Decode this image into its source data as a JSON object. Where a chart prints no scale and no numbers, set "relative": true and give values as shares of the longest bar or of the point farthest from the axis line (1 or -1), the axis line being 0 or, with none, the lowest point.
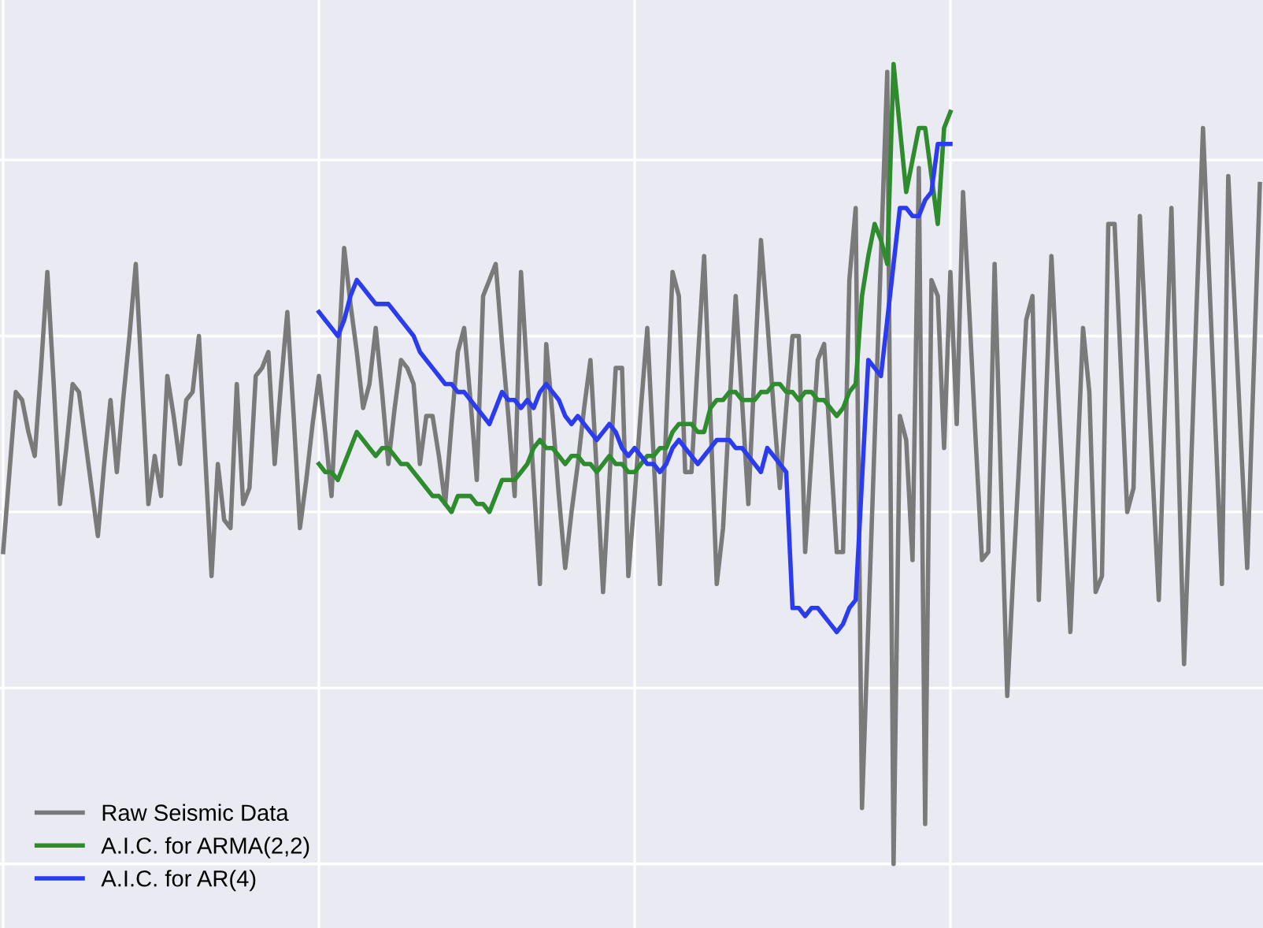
{
  "chart_data": {
    "type": "line",
    "relative": true,
    "grid": true,
    "legend": "bottom left",
    "marker": "none",
    "line_style": "solid",
    "categories": [
      null,
      null,
      null,
      null,
      null,
      null,
      null,
      null,
      null,
      null,
      null,
      null,
      null,
      null,
      null,
      null,
      null,
      null,
      null,
      null,
      null,
      null,
      null,
      null,
      null,
      null,
      null,
      null,
      null,
      null,
      null,
      null,
      null,
      null,
      null,
      null,
      null,
      null,
      null,
      null,
      null,
      null,
      null,
      null,
      null,
      null,
      null,
      null,
      null,
      null,
      null,
      null,
      null,
      null,
      null,
      null,
      null,
      null,
      null,
      null,
      null,
      null,
      null,
      null,
      null,
      null,
      null,
      null,
      null,
      null,
      null,
      null,
      null,
      null,
      null,
      null,
      null,
      null,
      null,
      null,
      null,
      null,
      null,
      null,
      null,
      null,
      null,
      null,
      null,
      null,
      null,
      null,
      null,
      null,
      null,
      null,
      null,
      null,
      null,
      null,
      null,
      null,
      null,
      null,
      null,
      null,
      null,
      null,
      null,
      null,
      null,
      null,
      null,
      null,
      null,
      null,
      null,
      null,
      null,
      null,
      null,
      null,
      null,
      null,
      null,
      null,
      null,
      null,
      null,
      null,
      null,
      null,
      null,
      null,
      null,
      null,
      null,
      null,
      null,
      null,
      null,
      null,
      null,
      null,
      null,
      null,
      null,
      null,
      null,
      null,
      null,
      null,
      null,
      null,
      null,
      null,
      null,
      null,
      null,
      null,
      null,
      null,
      null,
      null,
      null,
      null,
      null,
      null,
      null,
      null,
      null,
      null,
      null,
      null,
      null,
      null,
      null,
      null,
      null,
      null,
      null,
      null,
      null,
      null,
      null,
      null,
      null,
      null,
      null,
      null,
      null,
      null,
      null,
      null,
      null,
      null,
      null,
      null,
      null,
      null
    ],
    "series": [
      {
        "name": "Raw Seismic Data",
        "color": "#7a7a7a",
        "values": [
          0.39,
          0.49,
          0.59,
          0.58,
          0.54,
          0.51,
          0.62,
          0.74,
          0.6,
          0.45,
          0.52,
          0.6,
          0.59,
          0.53,
          0.47,
          0.41,
          0.5,
          0.58,
          0.49,
          0.58,
          0.66,
          0.75,
          0.6,
          0.45,
          0.51,
          0.46,
          0.61,
          0.56,
          0.5,
          0.58,
          0.59,
          0.66,
          0.51,
          0.36,
          0.5,
          0.43,
          0.42,
          0.6,
          0.45,
          0.47,
          0.61,
          0.62,
          0.64,
          0.5,
          0.6,
          0.69,
          0.56,
          0.42,
          0.48,
          0.55,
          0.61,
          0.54,
          0.46,
          0.62,
          0.77,
          0.7,
          0.64,
          0.57,
          0.6,
          0.67,
          0.59,
          0.5,
          0.57,
          0.63,
          0.62,
          0.6,
          0.5,
          0.56,
          0.56,
          0.51,
          0.45,
          0.55,
          0.64,
          0.67,
          0.58,
          0.48,
          0.71,
          0.73,
          0.75,
          0.65,
          0.56,
          0.46,
          0.74,
          0.61,
          0.48,
          0.35,
          0.65,
          0.56,
          0.46,
          0.37,
          0.44,
          0.5,
          0.57,
          0.63,
          0.49,
          0.34,
          0.48,
          0.62,
          0.62,
          0.36,
          0.46,
          0.57,
          0.67,
          0.51,
          0.35,
          0.55,
          0.74,
          0.71,
          0.49,
          0.49,
          0.63,
          0.76,
          0.56,
          0.35,
          0.42,
          0.57,
          0.71,
          0.58,
          0.45,
          0.62,
          0.78,
          0.68,
          0.57,
          0.47,
          0.57,
          0.66,
          0.66,
          0.39,
          0.51,
          0.63,
          0.65,
          0.52,
          0.39,
          0.39,
          0.73,
          0.82,
          0.07,
          0.3,
          0.53,
          0.76,
          0.99,
          0,
          0.56,
          0.53,
          0.38,
          0.87,
          0.05,
          0.73,
          0.71,
          0.52,
          0.74,
          0.55,
          0.84,
          0.69,
          0.53,
          0.38,
          0.39,
          0.75,
          0.48,
          0.21,
          0.37,
          0.52,
          0.68,
          0.71,
          0.33,
          0.55,
          0.76,
          0.6,
          0.45,
          0.29,
          0.48,
          0.67,
          0.59,
          0.34,
          0.36,
          0.8,
          0.8,
          0.62,
          0.44,
          0.47,
          0.81,
          0.65,
          0.49,
          0.33,
          0.58,
          0.82,
          0.54,
          0.25,
          0.47,
          0.7,
          0.92,
          0.73,
          0.54,
          0.35,
          0.86,
          0.7,
          0.53,
          0.37,
          0.61,
          0.85
        ]
      },
      {
        "name": "A.I.C. for ARMA(2,2)",
        "color": "#2e8b2e",
        "values": [
          null,
          null,
          null,
          null,
          null,
          null,
          null,
          null,
          null,
          null,
          null,
          null,
          null,
          null,
          null,
          null,
          null,
          null,
          null,
          null,
          null,
          null,
          null,
          null,
          null,
          null,
          null,
          null,
          null,
          null,
          null,
          null,
          null,
          null,
          null,
          null,
          null,
          null,
          null,
          null,
          null,
          null,
          null,
          null,
          null,
          null,
          null,
          null,
          null,
          null,
          0.5,
          0.49,
          0.49,
          0.48,
          0.5,
          0.52,
          0.54,
          0.53,
          0.52,
          0.51,
          0.52,
          0.52,
          0.51,
          0.5,
          0.5,
          0.49,
          0.48,
          0.47,
          0.46,
          0.46,
          0.45,
          0.44,
          0.46,
          0.46,
          0.46,
          0.45,
          0.45,
          0.44,
          0.46,
          0.48,
          0.48,
          0.48,
          0.49,
          0.5,
          0.52,
          0.53,
          0.52,
          0.52,
          0.51,
          0.5,
          0.51,
          0.51,
          0.5,
          0.5,
          0.49,
          0.5,
          0.51,
          0.5,
          0.5,
          0.49,
          0.49,
          0.5,
          0.51,
          0.51,
          0.52,
          0.52,
          0.54,
          0.55,
          0.55,
          0.55,
          0.54,
          0.54,
          0.57,
          0.58,
          0.58,
          0.59,
          0.59,
          0.58,
          0.58,
          0.58,
          0.59,
          0.59,
          0.6,
          0.6,
          0.59,
          0.59,
          0.58,
          0.59,
          0.59,
          0.58,
          0.58,
          0.57,
          0.56,
          0.57,
          0.59,
          0.6,
          0.71,
          0.76,
          0.8,
          0.78,
          0.75,
          1.0,
          0.92,
          0.84,
          0.88,
          0.92,
          0.92,
          0.86,
          0.8,
          0.92,
          0.94,
          null,
          null,
          null,
          null,
          null,
          null,
          null,
          null,
          null,
          null,
          null,
          null,
          null,
          null,
          null,
          null,
          null,
          null,
          null,
          null,
          null,
          null,
          null,
          null,
          null,
          null,
          null,
          null,
          null,
          null,
          null,
          null,
          null,
          null,
          null,
          null,
          null,
          null,
          null,
          null,
          null,
          null,
          null,
          null,
          null,
          null,
          null,
          null,
          null
        ]
      },
      {
        "name": "A.I.C. for AR(4)",
        "color": "#2b3cf0",
        "values": [
          null,
          null,
          null,
          null,
          null,
          null,
          null,
          null,
          null,
          null,
          null,
          null,
          null,
          null,
          null,
          null,
          null,
          null,
          null,
          null,
          null,
          null,
          null,
          null,
          null,
          null,
          null,
          null,
          null,
          null,
          null,
          null,
          null,
          null,
          null,
          null,
          null,
          null,
          null,
          null,
          null,
          null,
          null,
          null,
          null,
          null,
          null,
          null,
          null,
          null,
          0.69,
          0.68,
          0.67,
          0.66,
          0.68,
          0.71,
          0.73,
          0.72,
          0.71,
          0.7,
          0.7,
          0.7,
          0.69,
          0.68,
          0.67,
          0.66,
          0.64,
          0.63,
          0.62,
          0.61,
          0.6,
          0.6,
          0.59,
          0.59,
          0.58,
          0.57,
          0.56,
          0.55,
          0.57,
          0.59,
          0.58,
          0.58,
          0.57,
          0.58,
          0.57,
          0.59,
          0.6,
          0.59,
          0.58,
          0.56,
          0.55,
          0.56,
          0.55,
          0.54,
          0.53,
          0.54,
          0.55,
          0.54,
          0.52,
          0.51,
          0.52,
          0.51,
          0.5,
          0.5,
          0.49,
          0.5,
          0.52,
          0.53,
          0.52,
          0.51,
          0.5,
          0.51,
          0.52,
          0.53,
          0.53,
          0.53,
          0.52,
          0.52,
          0.51,
          0.5,
          0.49,
          0.52,
          0.51,
          0.5,
          0.49,
          0.32,
          0.32,
          0.31,
          0.32,
          0.32,
          0.31,
          0.3,
          0.29,
          0.3,
          0.32,
          0.33,
          0.48,
          0.63,
          0.62,
          0.61,
          0.68,
          0.75,
          0.82,
          0.82,
          0.81,
          0.81,
          0.83,
          0.84,
          0.9,
          0.9,
          0.9,
          null,
          null,
          null,
          null,
          null,
          null,
          null,
          null,
          null,
          null,
          null,
          null,
          null,
          null,
          null,
          null,
          null,
          null,
          null,
          null,
          null,
          null,
          null,
          null,
          null,
          null,
          null,
          null,
          null,
          null,
          null,
          null,
          null,
          null,
          null,
          null,
          null,
          null,
          null,
          null,
          null,
          null,
          null,
          null,
          null,
          null,
          null,
          null,
          null
        ]
      }
    ]
  }
}
